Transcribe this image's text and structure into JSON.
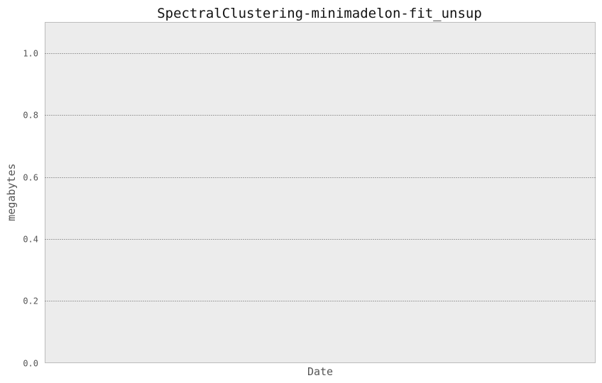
{
  "chart_data": {
    "type": "line",
    "title": "SpectralClustering-minimadelon-fit_unsup",
    "xlabel": "Date",
    "ylabel": "megabytes",
    "ylim": [
      0,
      1.1
    ],
    "yticks": [
      0.0,
      0.2,
      0.4,
      0.6,
      0.8,
      1.0
    ],
    "ytick_labels": [
      "0.0",
      "0.2",
      "0.4",
      "0.6",
      "0.8",
      "1.0"
    ],
    "grid": "horizontal, dotted",
    "background": "#ececec",
    "series": []
  }
}
